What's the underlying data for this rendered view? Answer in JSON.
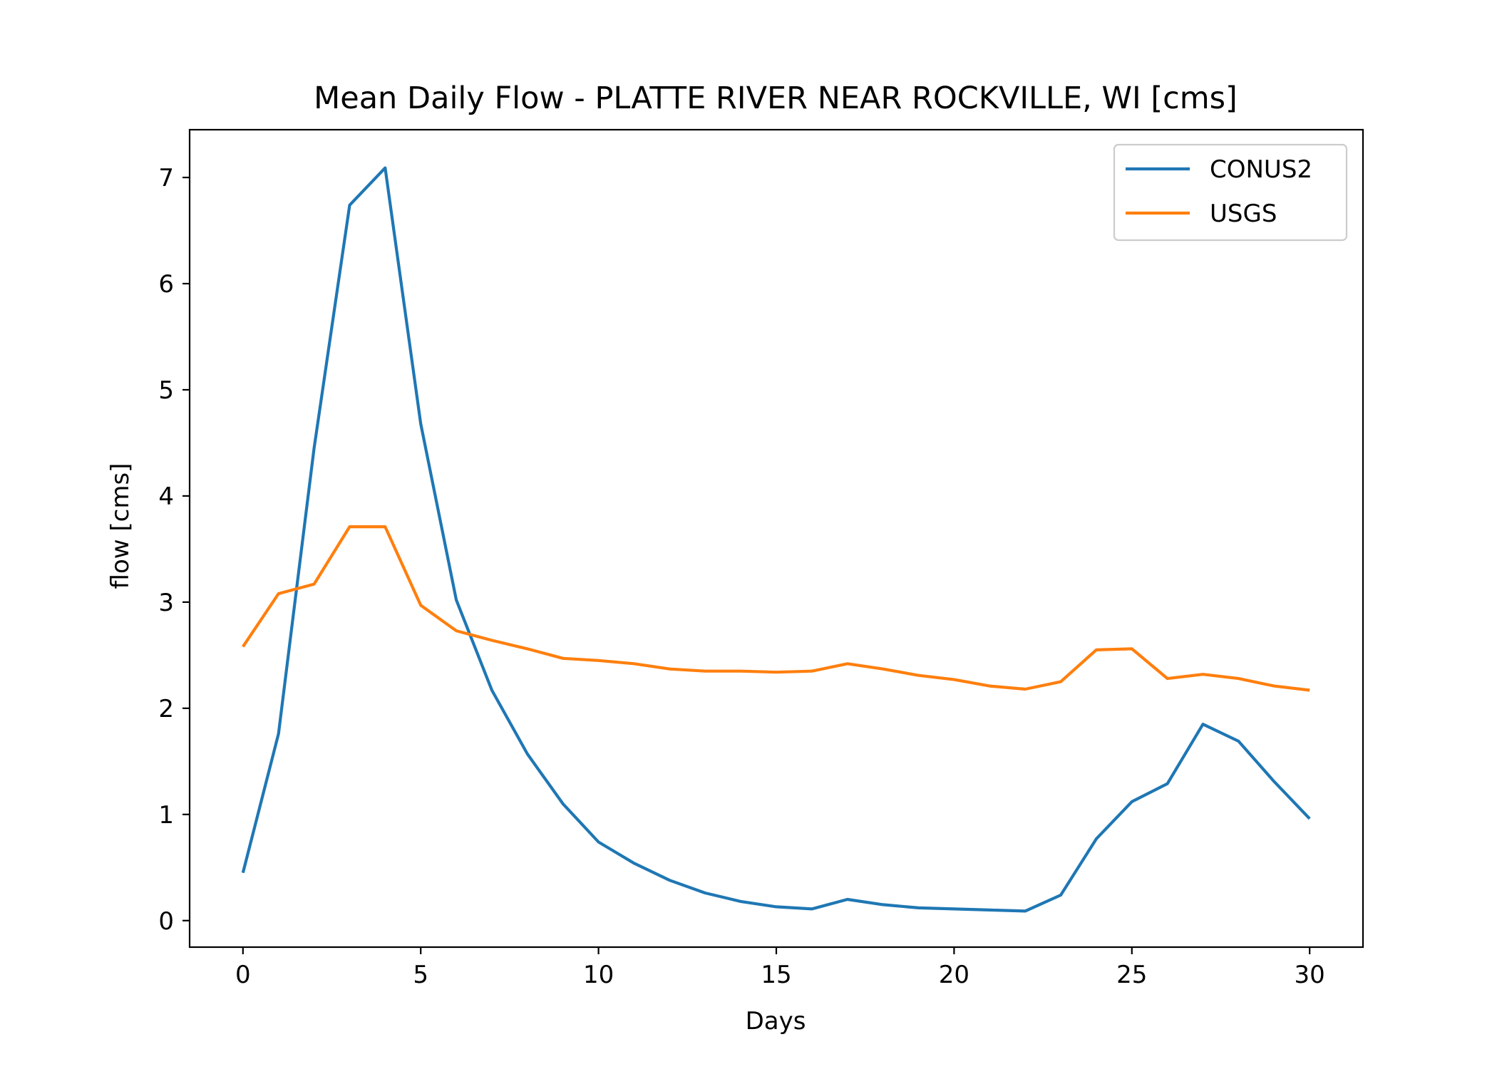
{
  "chart_data": {
    "type": "line",
    "title": "Mean Daily Flow - PLATTE RIVER NEAR ROCKVILLE, WI [cms]",
    "xlabel": "Days",
    "ylabel": "flow [cms]",
    "xlim": [
      -1.5,
      31.5
    ],
    "ylim": [
      -0.25,
      7.45
    ],
    "xticks": [
      0,
      5,
      10,
      15,
      20,
      25,
      30
    ],
    "yticks": [
      0,
      1,
      2,
      3,
      4,
      5,
      6,
      7
    ],
    "grid": false,
    "legend_position": "top-right",
    "x": [
      0,
      1,
      2,
      3,
      4,
      5,
      6,
      7,
      8,
      9,
      10,
      11,
      12,
      13,
      14,
      15,
      16,
      17,
      18,
      19,
      20,
      21,
      22,
      23,
      24,
      25,
      26,
      27,
      28,
      29,
      30
    ],
    "series": [
      {
        "name": "CONUS2",
        "color": "#1f77b4",
        "values": [
          0.45,
          1.76,
          4.45,
          6.74,
          7.09,
          4.68,
          3.02,
          2.17,
          1.57,
          1.1,
          0.74,
          0.54,
          0.38,
          0.26,
          0.18,
          0.13,
          0.11,
          0.2,
          0.15,
          0.12,
          0.11,
          0.1,
          0.09,
          0.24,
          0.77,
          1.12,
          1.29,
          1.85,
          1.69,
          1.31,
          0.96
        ]
      },
      {
        "name": "USGS",
        "color": "#ff7f0e",
        "values": [
          2.58,
          3.08,
          3.17,
          3.71,
          3.71,
          2.97,
          2.73,
          2.64,
          2.56,
          2.47,
          2.45,
          2.42,
          2.37,
          2.35,
          2.35,
          2.34,
          2.35,
          2.42,
          2.37,
          2.31,
          2.27,
          2.21,
          2.18,
          2.25,
          2.55,
          2.56,
          2.28,
          2.32,
          2.28,
          2.21,
          2.17
        ]
      }
    ]
  }
}
